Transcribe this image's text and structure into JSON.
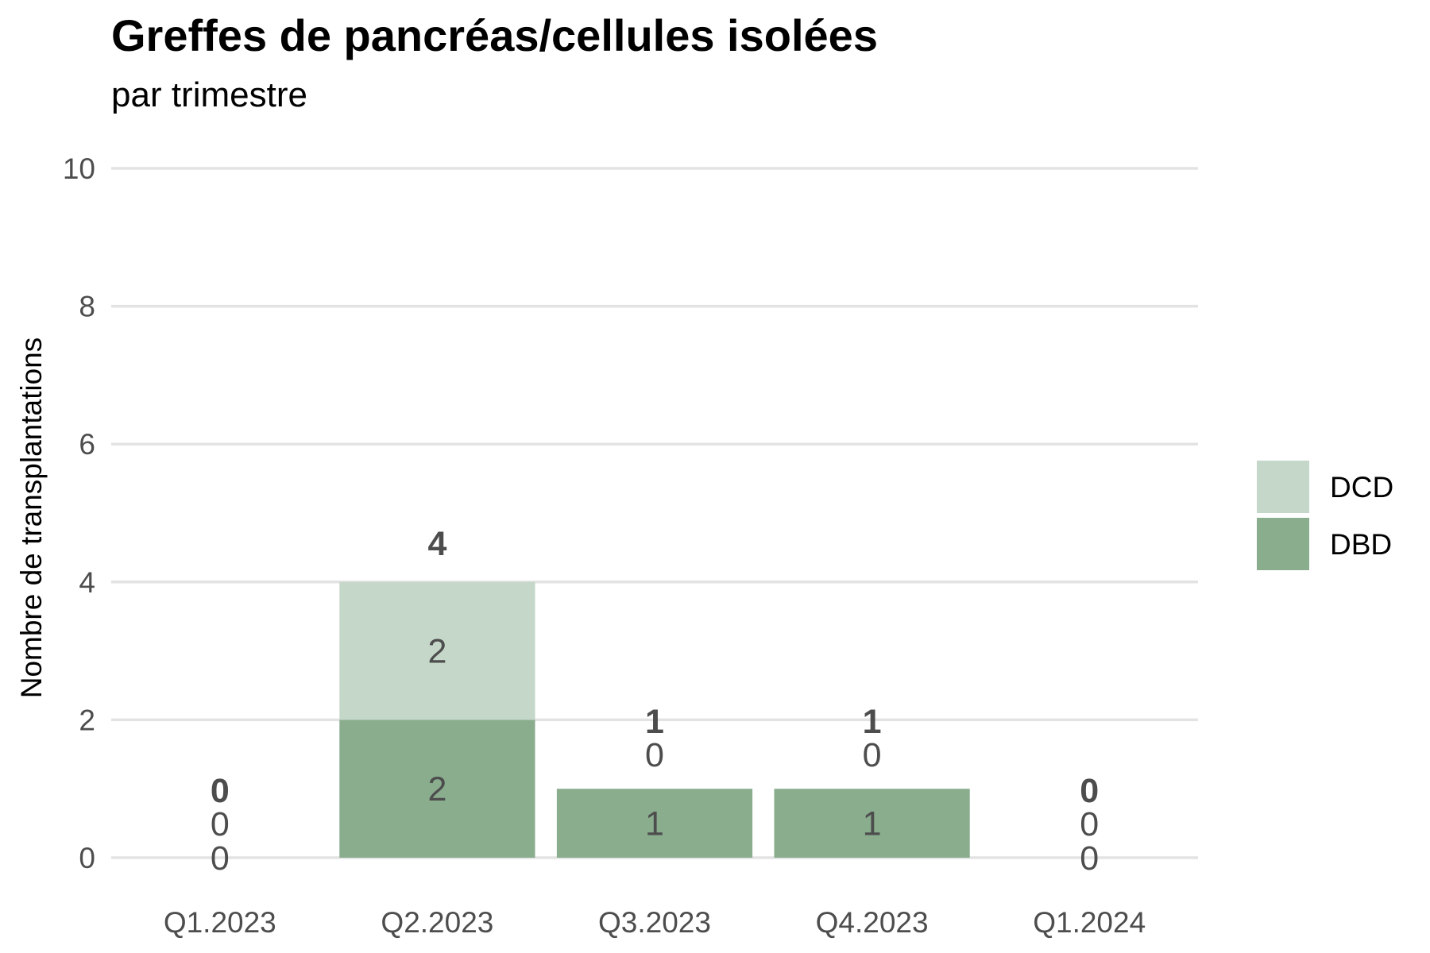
{
  "chart_data": {
    "type": "bar",
    "stacked": true,
    "title": "Greffes de pancréas/cellules isolées",
    "subtitle": "par trimestre",
    "xlabel": "",
    "ylabel": "Nombre de transplantations",
    "ylim": [
      0,
      10
    ],
    "yticks": [
      "0",
      "2",
      "4",
      "6",
      "8",
      "10"
    ],
    "categories": [
      "Q1.2023",
      "Q2.2023",
      "Q3.2023",
      "Q4.2023",
      "Q1.2024"
    ],
    "series": [
      {
        "name": "DBD",
        "color": "#8aad8e",
        "values": [
          0,
          2,
          1,
          1,
          0
        ]
      },
      {
        "name": "DCD",
        "color": "#c4d7c8",
        "values": [
          0,
          2,
          0,
          0,
          0
        ]
      }
    ],
    "totals": [
      0,
      4,
      1,
      1,
      0
    ],
    "legend": {
      "position": "right",
      "items": [
        "DCD",
        "DBD"
      ]
    },
    "grid": true
  }
}
